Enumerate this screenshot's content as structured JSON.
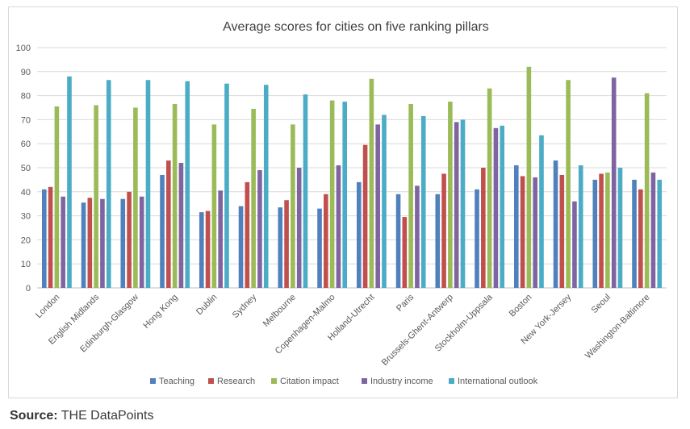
{
  "chart_data": {
    "type": "bar",
    "title": "Average scores for cities on five ranking pillars",
    "xlabel": "",
    "ylabel": "",
    "ylim": [
      0,
      100
    ],
    "yticks": [
      0,
      10,
      20,
      30,
      40,
      50,
      60,
      70,
      80,
      90,
      100
    ],
    "grid": true,
    "legend_position": "bottom",
    "categories": [
      "London",
      "English Midlands",
      "Edinburgh-Glasgow",
      "Hong Kong",
      "Dublin",
      "Sydney",
      "Melbourne",
      "Copenhagen-Malmo",
      "Holland-Utrecht",
      "Paris",
      "Brussels-Ghent-Antwerp",
      "Stockholm-Uppsala",
      "Boston",
      "New York-Jersey",
      "Seoul",
      "Washington-Baltimore"
    ],
    "series": [
      {
        "name": "Teaching",
        "color": "#4f81bd",
        "values": [
          41,
          35.5,
          37,
          47,
          31.5,
          34,
          33.5,
          33,
          44,
          39,
          39,
          41,
          51,
          53,
          45,
          45
        ]
      },
      {
        "name": "Research",
        "color": "#c0504d",
        "values": [
          42,
          37.5,
          40,
          53,
          32,
          44,
          36.5,
          39,
          59.5,
          29.5,
          47.5,
          50,
          46.5,
          47,
          47.5,
          41
        ]
      },
      {
        "name": "Citation impact",
        "color": "#9bbb59",
        "values": [
          75.5,
          76,
          75,
          76.5,
          68,
          74.5,
          68,
          78,
          87,
          76.5,
          77.5,
          83,
          92,
          86.5,
          48,
          81
        ]
      },
      {
        "name": "Industry income",
        "color": "#8064a2",
        "values": [
          38,
          37,
          38,
          52,
          40.5,
          49,
          50,
          51,
          68,
          42.5,
          69,
          66.5,
          46,
          36,
          87.5,
          48
        ]
      },
      {
        "name": "International outlook",
        "color": "#4bacc6",
        "values": [
          88,
          86.5,
          86.5,
          86,
          85,
          84.5,
          80.5,
          77.5,
          72,
          71.5,
          70,
          67.5,
          63.5,
          51,
          50,
          45
        ]
      }
    ]
  },
  "source": {
    "label": "Source:",
    "text": "THE DataPoints"
  }
}
